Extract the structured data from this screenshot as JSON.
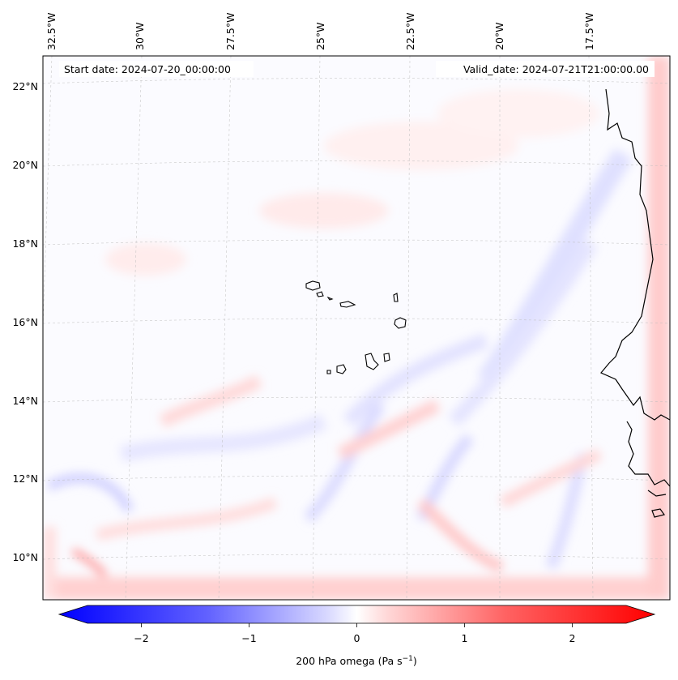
{
  "header": {
    "start_date": "Start date: 2024-07-20_00:00:00",
    "valid_date": "Valid_date: 2024-07-21T21:00:00.00"
  },
  "longitude_labels": [
    "32.5°W",
    "30°W",
    "27.5°W",
    "25°W",
    "22.5°W",
    "20°W",
    "17.5°W"
  ],
  "latitude_labels": [
    "22°N",
    "20°N",
    "18°N",
    "16°N",
    "14°N",
    "12°N",
    "10°N"
  ],
  "colorbar": {
    "ticks": [
      "−2",
      "−1",
      "0",
      "1",
      "2"
    ],
    "tick_values": [
      -2,
      -1,
      0,
      1,
      2
    ],
    "range": [
      -2.6,
      2.6
    ],
    "label_main": "200 hPa omega (Pa s",
    "label_exp": "−1",
    "label_close": ")",
    "colors": {
      "negative": "#0000ff",
      "zero": "#ffffff",
      "positive": "#ff0000"
    }
  },
  "map": {
    "grid": true,
    "coastlines": true,
    "field": "omega"
  }
}
